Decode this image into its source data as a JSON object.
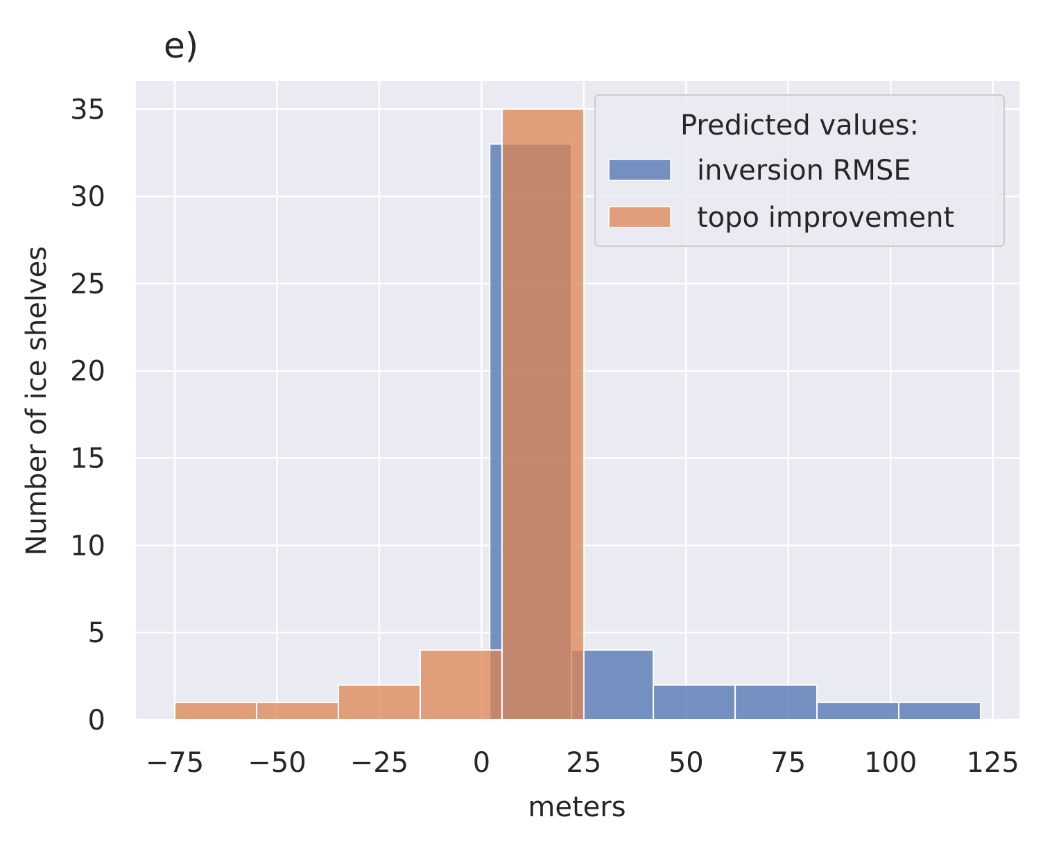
{
  "chart_data": {
    "type": "bar",
    "title": "e)",
    "xlabel": "meters",
    "ylabel": "Number of ice shelves",
    "xlim": [
      -84.5,
      131.5
    ],
    "ylim": [
      0,
      36.6
    ],
    "xticks": [
      -75,
      -50,
      -25,
      0,
      25,
      50,
      75,
      100,
      125
    ],
    "xtick_labels": [
      "−75",
      "−50",
      "−25",
      "0",
      "25",
      "50",
      "75",
      "100",
      "125"
    ],
    "yticks": [
      0,
      5,
      10,
      15,
      20,
      25,
      30,
      35
    ],
    "ytick_labels": [
      "0",
      "5",
      "10",
      "15",
      "20",
      "25",
      "30",
      "35"
    ],
    "grid": true,
    "legend": {
      "title": "Predicted values:",
      "placement": "top-right"
    },
    "series": [
      {
        "name": "inversion RMSE",
        "color": "#4c72b0",
        "bins": [
          {
            "x0": 2.0,
            "x1": 22.0,
            "count": 33
          },
          {
            "x0": 22.0,
            "x1": 42.0,
            "count": 4
          },
          {
            "x0": 42.0,
            "x1": 62.0,
            "count": 2
          },
          {
            "x0": 62.0,
            "x1": 82.0,
            "count": 2
          },
          {
            "x0": 82.0,
            "x1": 102.0,
            "count": 1
          },
          {
            "x0": 102.0,
            "x1": 122.0,
            "count": 1
          }
        ]
      },
      {
        "name": "topo improvement",
        "color": "#dd8452",
        "bins": [
          {
            "x0": -75.0,
            "x1": -55.0,
            "count": 1
          },
          {
            "x0": -55.0,
            "x1": -35.0,
            "count": 1
          },
          {
            "x0": -35.0,
            "x1": -15.0,
            "count": 2
          },
          {
            "x0": -15.0,
            "x1": 5.0,
            "count": 4
          },
          {
            "x0": 5.0,
            "x1": 25.0,
            "count": 35
          }
        ]
      }
    ]
  }
}
